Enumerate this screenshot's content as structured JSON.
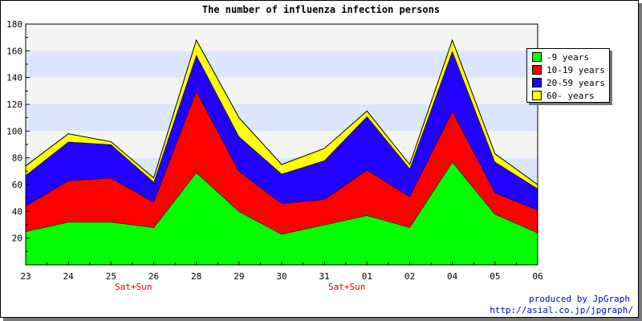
{
  "chart_data": {
    "type": "area",
    "stacked": true,
    "title": "The number of influenza infection persons",
    "xlabel": "",
    "ylabel": "",
    "categories": [
      "23",
      "24",
      "25",
      "26",
      "28",
      "29",
      "30",
      "31",
      "01",
      "02",
      "04",
      "05",
      "06"
    ],
    "category_notes": [
      {
        "after_category": "25",
        "text": "Sat+Sun"
      },
      {
        "after_category": "31",
        "text": "Sat+Sun"
      }
    ],
    "ylim": [
      0,
      180
    ],
    "yticks": [
      20,
      40,
      60,
      80,
      100,
      120,
      140,
      160,
      180
    ],
    "grid": "horizontal bands",
    "legend_position": "right",
    "series": [
      {
        "name": "-9 years",
        "color": "#00ff00",
        "values": [
          25,
          32,
          32,
          28,
          69,
          40,
          23,
          30,
          37,
          28,
          77,
          38,
          24
        ]
      },
      {
        "name": "10-19 years",
        "color": "#ff0000",
        "values": [
          19,
          31,
          33,
          19,
          61,
          30,
          23,
          19,
          34,
          23,
          38,
          16,
          17
        ]
      },
      {
        "name": "20-59 years",
        "color": "#2200ff",
        "values": [
          23,
          29,
          25,
          15,
          27,
          26,
          22,
          29,
          40,
          21,
          45,
          23,
          16
        ]
      },
      {
        "name": "60- years",
        "color": "#ffff00",
        "values": [
          7,
          6,
          2,
          3,
          11,
          14,
          7,
          9,
          4,
          3,
          8,
          6,
          3
        ]
      }
    ]
  },
  "credits": {
    "line1": "produced by JpGraph",
    "line2": "http://asial.co.jp/jpgraph/"
  }
}
